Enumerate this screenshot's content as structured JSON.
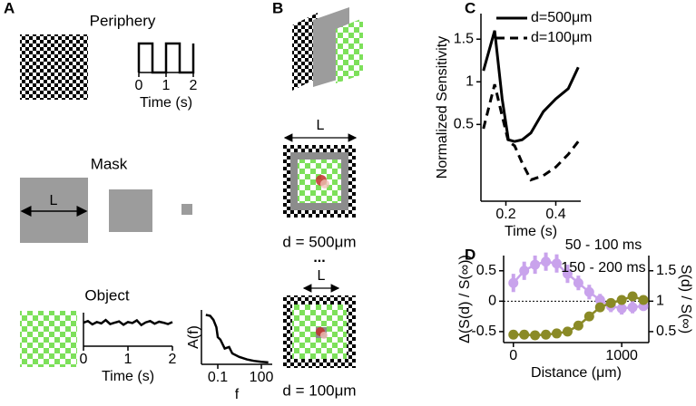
{
  "figure": {
    "panel_a": "A",
    "periphery": "Periphery",
    "mask": "Mask",
    "mask_size": "L",
    "object": "Object",
    "panel_b": "B",
    "size_top": "L",
    "d_top": "d = 500μm",
    "ellipsis": "...",
    "size_bottom": "L",
    "d_bottom": "d = 100μm",
    "panel_c": "C",
    "panel_d": "D"
  },
  "chart_data": [
    {
      "type": "line",
      "xlabel": "Time (s)",
      "x": [
        0,
        0,
        0.5,
        0.5,
        1,
        1,
        1.5,
        1.5,
        2,
        2
      ],
      "values": [
        0,
        1,
        1,
        0,
        0,
        1,
        1,
        0,
        0,
        1
      ],
      "xlim": [
        0,
        2
      ],
      "ylim": [
        0,
        1
      ],
      "xticks": [
        0,
        1,
        2
      ],
      "color": "#000000"
    },
    {
      "type": "line",
      "xlabel": "Time (s)",
      "x": [
        0,
        0.1,
        0.2,
        0.3,
        0.4,
        0.5,
        0.6,
        0.7,
        0.8,
        0.9,
        1,
        1.1,
        1.2,
        1.3,
        1.4,
        1.5,
        1.6,
        1.7,
        1.8,
        1.9,
        2
      ],
      "values": [
        0.7,
        0.75,
        0.65,
        0.72,
        0.68,
        0.78,
        0.66,
        0.7,
        0.74,
        0.64,
        0.72,
        0.69,
        0.77,
        0.63,
        0.71,
        0.75,
        0.67,
        0.73,
        0.7,
        0.66,
        0.72
      ],
      "xlim": [
        0,
        2
      ],
      "ylim": [
        0,
        1
      ],
      "xticks": [
        0,
        1,
        2
      ],
      "color": "#000000"
    },
    {
      "type": "line",
      "xlabel": "f",
      "ylabel": "A(f)",
      "xlog": true,
      "x": [
        0.015,
        0.03,
        0.05,
        0.08,
        0.1,
        0.15,
        0.3,
        0.6,
        1,
        3,
        10,
        30,
        100,
        300
      ],
      "values": [
        1.0,
        0.98,
        0.9,
        0.75,
        0.55,
        0.5,
        0.32,
        0.35,
        0.22,
        0.15,
        0.1,
        0.07,
        0.05,
        0.04
      ],
      "xlim": [
        0.0075,
        560
      ],
      "ylim": [
        0,
        1.1
      ],
      "xticks": [
        0.1,
        100
      ],
      "color": "#000000"
    },
    {
      "type": "line",
      "xlabel": "Time (s)",
      "ylabel": "Normalized Sensitivity",
      "x": [
        0.11,
        0.155,
        0.185,
        0.21,
        0.235,
        0.265,
        0.3,
        0.35,
        0.4,
        0.45,
        0.49
      ],
      "series": [
        {
          "name": "d=500μm",
          "color": "#000000",
          "style": "solid",
          "values": [
            1.13,
            1.6,
            0.8,
            0.32,
            0.3,
            0.32,
            0.4,
            0.65,
            0.8,
            0.92,
            1.17
          ]
        },
        {
          "name": "d=100μm",
          "color": "#000000",
          "style": "dashed",
          "values": [
            0.45,
            0.97,
            0.6,
            0.3,
            0.25,
            0.05,
            -0.15,
            -0.1,
            0.0,
            0.15,
            0.3
          ]
        }
      ],
      "xlim": [
        0.1,
        0.5
      ],
      "ylim": [
        -0.4,
        1.8
      ],
      "xticks": [
        0.2,
        0.4
      ],
      "yticks": [
        0.5,
        1,
        1.5
      ],
      "legend": "top-right"
    },
    {
      "type": "errorbar",
      "xlabel": "Distance (μm)",
      "ylabel": "Δ(S(d) / S(∞))",
      "y2label": "S(d) / S(∞)",
      "x": [
        0,
        100,
        200,
        300,
        400,
        500,
        600,
        700,
        800,
        900,
        1000,
        1100,
        1200
      ],
      "series": [
        {
          "name": "50 - 100 ms",
          "color": "#c9a3ec",
          "values": [
            0.3,
            0.5,
            0.6,
            0.65,
            0.62,
            0.45,
            0.3,
            0.15,
            0.02,
            -0.08,
            -0.12,
            -0.1,
            -0.08
          ],
          "errors": [
            0.15,
            0.15,
            0.15,
            0.15,
            0.15,
            0.15,
            0.12,
            0.12,
            0.1,
            0.1,
            0.1,
            0.1,
            0.08
          ]
        },
        {
          "name": "150 - 200 ms",
          "color": "#8a8a26",
          "axis": "y2",
          "values": [
            0.45,
            0.45,
            0.44,
            0.45,
            0.47,
            0.5,
            0.6,
            0.75,
            0.9,
            0.97,
            1.02,
            1.08,
            1.02
          ],
          "errors": [
            0.04,
            0.04,
            0.04,
            0.04,
            0.04,
            0.04,
            0.05,
            0.05,
            0.05,
            0.05,
            0.05,
            0.06,
            0.05
          ]
        }
      ],
      "xlim": [
        -90,
        1250
      ],
      "ylim": [
        -0.68,
        0.75
      ],
      "y2lim": [
        0.32,
        1.75
      ],
      "xticks": [
        0,
        1000
      ],
      "yticks": [
        -0.5,
        0,
        0.5
      ],
      "y2ticks": [
        0.5,
        1,
        1.5
      ],
      "hline": 0
    }
  ]
}
